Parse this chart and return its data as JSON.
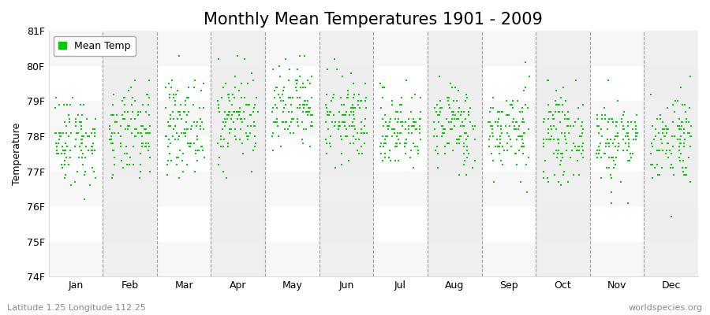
{
  "title": "Monthly Mean Temperatures 1901 - 2009",
  "ylabel": "Temperature",
  "subtitle": "Latitude 1.25 Longitude 112.25",
  "watermark": "worldspecies.org",
  "months": [
    "Jan",
    "Feb",
    "Mar",
    "Apr",
    "May",
    "Jun",
    "Jul",
    "Aug",
    "Sep",
    "Oct",
    "Nov",
    "Dec"
  ],
  "ylim": [
    74,
    81
  ],
  "yticks": [
    74,
    75,
    76,
    77,
    78,
    79,
    80,
    81
  ],
  "ytick_labels": [
    "74F",
    "75F",
    "76F",
    "77F",
    "78F",
    "79F",
    "80F",
    "81F"
  ],
  "marker_color": "#00cc00",
  "marker": "s",
  "marker_size": 3.5,
  "bg_color": "#ffffff",
  "plot_bg_color": "#ffffff",
  "alt_band_color": "#eeeeee",
  "title_fontsize": 15,
  "label_fontsize": 9,
  "tick_fontsize": 9,
  "n_years": 109,
  "lat": 1.25,
  "lon": 112.25,
  "seed": 42,
  "monthly_means": [
    77.9,
    78.05,
    78.3,
    78.55,
    78.7,
    78.45,
    78.2,
    78.3,
    78.15,
    78.0,
    77.9,
    77.95
  ],
  "monthly_stds": [
    0.65,
    0.65,
    0.65,
    0.65,
    0.65,
    0.6,
    0.55,
    0.6,
    0.6,
    0.6,
    0.6,
    0.65
  ],
  "quantize": 0.1,
  "dashed_line_color": "#888888",
  "spine_color": "#cccccc"
}
